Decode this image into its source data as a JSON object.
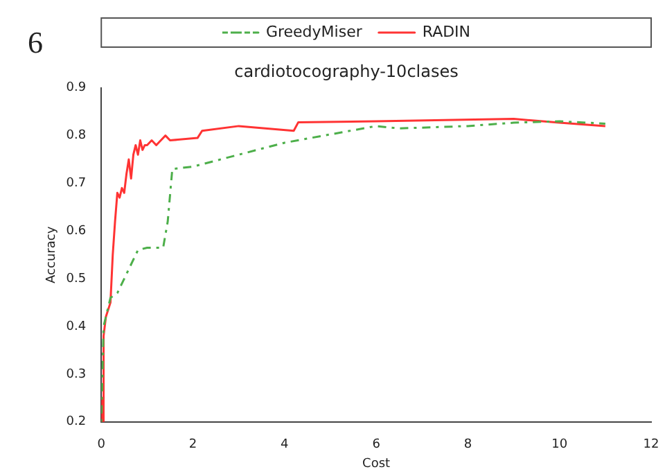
{
  "chart_data": {
    "type": "line",
    "title": "cardiotocography-10clases",
    "xlabel": "Cost",
    "ylabel": "Accuracy",
    "annotations": [
      "6"
    ],
    "xlim": [
      0,
      12
    ],
    "xticks": [
      0,
      2,
      4,
      6,
      8,
      10,
      12
    ],
    "ylim": [
      0.2,
      0.9
    ],
    "yticks": [
      0.2,
      0.3,
      0.4,
      0.5,
      0.6,
      0.7,
      0.8,
      0.9
    ],
    "legend": "top",
    "grid": false,
    "marker": "none",
    "series": [
      {
        "name": "GreedyMiser",
        "color": "#4daf4a",
        "line_style": "dashed",
        "x": [
          0,
          0.05,
          0.2,
          0.35,
          0.6,
          0.8,
          1.0,
          1.35,
          1.45,
          1.55,
          2,
          4,
          6,
          6.5,
          8,
          9,
          10,
          11
        ],
        "values": [
          0.2,
          0.4,
          0.46,
          0.47,
          0.52,
          0.56,
          0.565,
          0.565,
          0.62,
          0.73,
          0.735,
          0.785,
          0.82,
          0.815,
          0.82,
          0.827,
          0.83,
          0.825
        ]
      },
      {
        "name": "RADIN",
        "color": "#ff3333",
        "line_style": "solid",
        "x": [
          0,
          0.02,
          0.04,
          0.05,
          0.1,
          0.2,
          0.25,
          0.3,
          0.35,
          0.4,
          0.45,
          0.5,
          0.55,
          0.6,
          0.65,
          0.7,
          0.75,
          0.8,
          0.85,
          0.9,
          0.95,
          1.0,
          1.1,
          1.2,
          1.3,
          1.4,
          1.5,
          2.1,
          2.2,
          3.0,
          4.2,
          4.3,
          6,
          9,
          10,
          11
        ],
        "values": [
          0.2,
          0.25,
          0.2,
          0.38,
          0.42,
          0.45,
          0.55,
          0.62,
          0.68,
          0.67,
          0.69,
          0.68,
          0.72,
          0.75,
          0.71,
          0.76,
          0.78,
          0.76,
          0.79,
          0.77,
          0.78,
          0.78,
          0.79,
          0.78,
          0.79,
          0.8,
          0.79,
          0.795,
          0.81,
          0.82,
          0.81,
          0.828,
          0.83,
          0.835,
          0.827,
          0.82
        ]
      }
    ]
  }
}
